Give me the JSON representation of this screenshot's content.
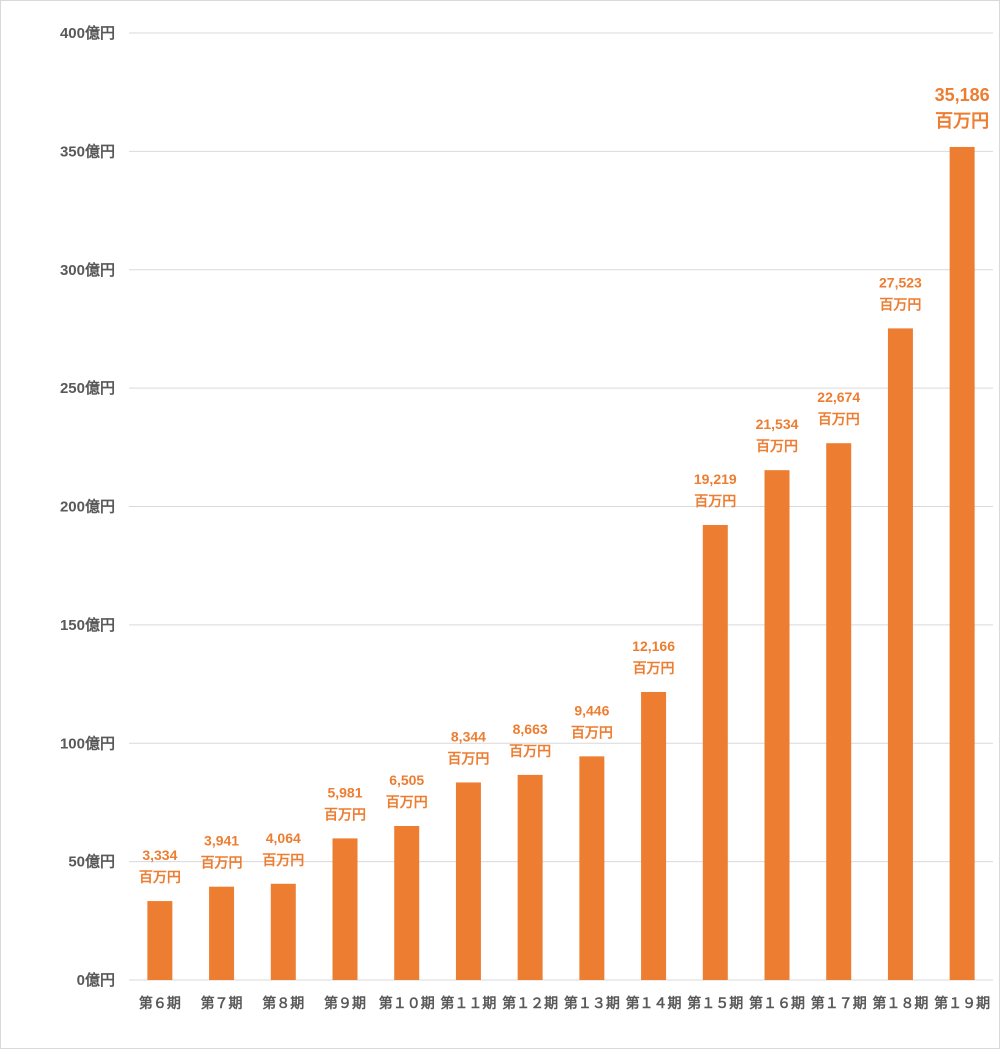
{
  "chart_data": {
    "type": "bar",
    "categories": [
      "第６期",
      "第７期",
      "第８期",
      "第９期",
      "第１０期",
      "第１１期",
      "第１２期",
      "第１３期",
      "第１４期",
      "第１５期",
      "第１６期",
      "第１７期",
      "第１８期",
      "第１９期"
    ],
    "values": [
      3334,
      3941,
      4064,
      5981,
      6505,
      8344,
      8663,
      9446,
      12166,
      19219,
      21534,
      22674,
      27523,
      35186
    ],
    "value_labels": [
      "3,334",
      "3,941",
      "4,064",
      "5,981",
      "6,505",
      "8,344",
      "8,663",
      "9,446",
      "12,166",
      "19,219",
      "21,534",
      "22,674",
      "27,523",
      "35,186"
    ],
    "value_unit_label": "百万円",
    "ylim": [
      0,
      40000
    ],
    "yticks": [
      0,
      5000,
      10000,
      15000,
      20000,
      25000,
      30000,
      35000,
      40000
    ],
    "ytick_labels": [
      "0億円",
      "50億円",
      "100億円",
      "150億円",
      "200億円",
      "250億円",
      "300億円",
      "350億円",
      "400億円"
    ],
    "grid": true,
    "bar_color": "#ed7d31",
    "title": "",
    "xlabel": "",
    "ylabel": ""
  }
}
